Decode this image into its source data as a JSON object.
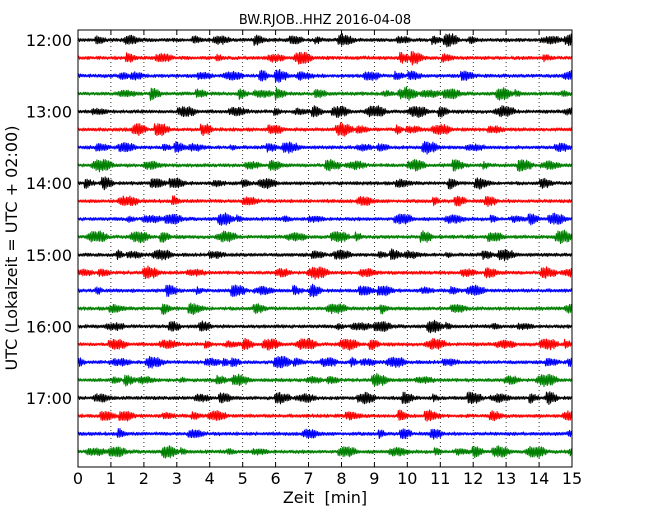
{
  "chart_data": {
    "type": "line",
    "title": "BW.RJOB..HHZ 2016-04-08",
    "xlabel": "Zeit  [min]",
    "ylabel": "UTC (Lokalzeit = UTC + 02:00)",
    "xlim": [
      0,
      15
    ],
    "x_ticks": [
      0,
      1,
      2,
      3,
      4,
      5,
      6,
      7,
      8,
      9,
      10,
      11,
      12,
      13,
      14,
      15
    ],
    "x_tick_labels": [
      "0",
      "1",
      "2",
      "3",
      "4",
      "5",
      "6",
      "7",
      "8",
      "9",
      "10",
      "11",
      "12",
      "13",
      "14",
      "15"
    ],
    "y_tick_labels": [
      "12:00",
      "13:00",
      "14:00",
      "15:00",
      "16:00",
      "17:00"
    ],
    "trace_interval_minutes": 15,
    "grid": "vertical-dotted",
    "trace_colors": [
      "#000000",
      "#ff0000",
      "#0000ff",
      "#008000"
    ],
    "traces": [
      {
        "start": "12:00",
        "color": "#000000"
      },
      {
        "start": "12:15",
        "color": "#ff0000"
      },
      {
        "start": "12:30",
        "color": "#0000ff"
      },
      {
        "start": "12:45",
        "color": "#008000"
      },
      {
        "start": "13:00",
        "color": "#000000"
      },
      {
        "start": "13:15",
        "color": "#ff0000"
      },
      {
        "start": "13:30",
        "color": "#0000ff"
      },
      {
        "start": "13:45",
        "color": "#008000"
      },
      {
        "start": "14:00",
        "color": "#000000"
      },
      {
        "start": "14:15",
        "color": "#ff0000"
      },
      {
        "start": "14:30",
        "color": "#0000ff"
      },
      {
        "start": "14:45",
        "color": "#008000"
      },
      {
        "start": "15:00",
        "color": "#000000"
      },
      {
        "start": "15:15",
        "color": "#ff0000"
      },
      {
        "start": "15:30",
        "color": "#0000ff"
      },
      {
        "start": "15:45",
        "color": "#008000"
      },
      {
        "start": "16:00",
        "color": "#000000"
      },
      {
        "start": "16:15",
        "color": "#ff0000"
      },
      {
        "start": "16:30",
        "color": "#0000ff"
      },
      {
        "start": "16:45",
        "color": "#008000"
      },
      {
        "start": "17:00",
        "color": "#000000"
      },
      {
        "start": "17:15",
        "color": "#ff0000"
      },
      {
        "start": "17:30",
        "color": "#0000ff"
      },
      {
        "start": "17:45",
        "color": "#008000"
      }
    ]
  }
}
